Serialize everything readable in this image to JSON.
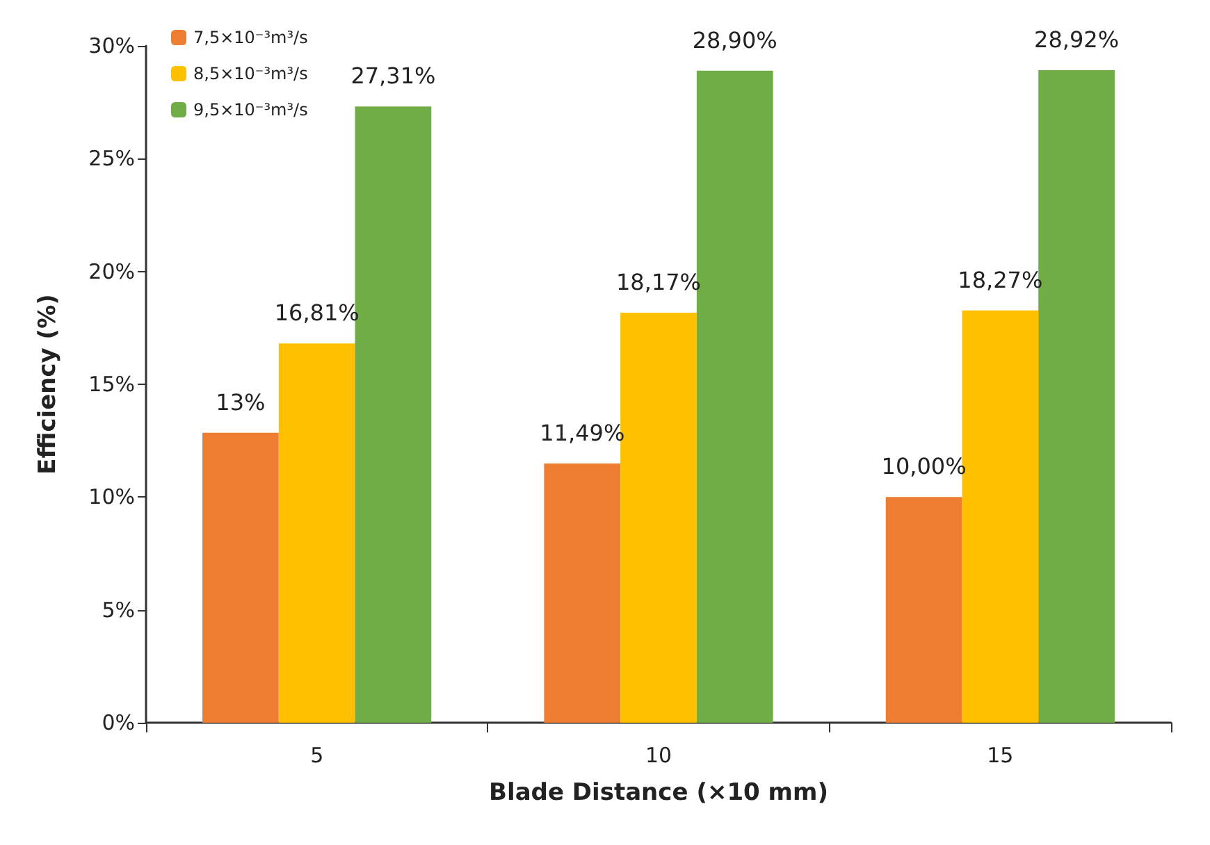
{
  "chart_data": {
    "type": "bar",
    "xlabel": "Blade Distance (×10 mm)",
    "ylabel": "Efficiency (%)",
    "categories": [
      "5",
      "10",
      "15"
    ],
    "series": [
      {
        "name": "7,5×10⁻³m³/s",
        "color": "#ed7d31",
        "values": [
          12.85,
          11.49,
          10.0
        ],
        "value_labels": [
          "13%",
          "11,49%",
          "10,00%"
        ]
      },
      {
        "name": "8,5×10⁻³m³/s",
        "color": "#ffc000",
        "values": [
          16.81,
          18.17,
          18.27
        ],
        "value_labels": [
          "16,81%",
          "18,17%",
          "18,27%"
        ]
      },
      {
        "name": "9,5×10⁻³m³/s",
        "color": "#70ad47",
        "values": [
          27.31,
          28.9,
          28.92
        ],
        "value_labels": [
          "27,31%",
          "28,90%",
          "28,92%"
        ]
      }
    ],
    "ylim": [
      0,
      30
    ],
    "yticks": [
      {
        "value": 0,
        "label": "0%"
      },
      {
        "value": 5,
        "label": "5%"
      },
      {
        "value": 10,
        "label": "10%"
      },
      {
        "value": 15,
        "label": "15%"
      },
      {
        "value": 20,
        "label": "20%"
      },
      {
        "value": 25,
        "label": "25%"
      },
      {
        "value": 30,
        "label": "30%"
      }
    ],
    "grid": false,
    "legend": "top left"
  }
}
